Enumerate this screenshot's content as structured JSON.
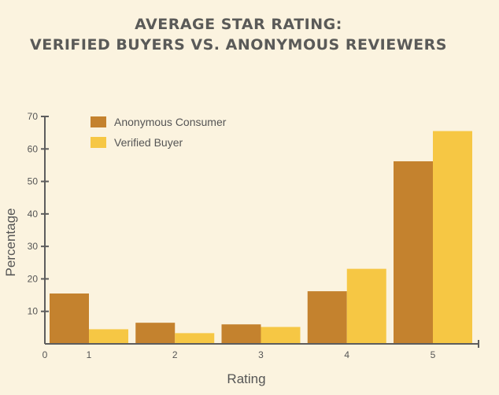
{
  "chart_data": {
    "type": "bar",
    "title_lines": [
      "AVERAGE STAR RATING:",
      "VERIFIED BUYERS VS. ANONYMOUS REVIEWERS"
    ],
    "xlabel": "Rating",
    "ylabel": "Percentage",
    "categories": [
      "1",
      "2",
      "3",
      "4",
      "5"
    ],
    "x_origin_label": "0",
    "yticks": [
      10,
      20,
      30,
      40,
      50,
      60,
      70
    ],
    "ylim": [
      0,
      70
    ],
    "grid": false,
    "legend_position": "top-left",
    "series": [
      {
        "name": "Anonymous Consumer",
        "color": "#c4822e",
        "values": [
          15.5,
          6.5,
          6.0,
          16.2,
          56.2
        ]
      },
      {
        "name": "Verified Buyer",
        "color": "#f6c744",
        "values": [
          4.5,
          3.3,
          5.2,
          23.1,
          65.5
        ]
      }
    ]
  }
}
